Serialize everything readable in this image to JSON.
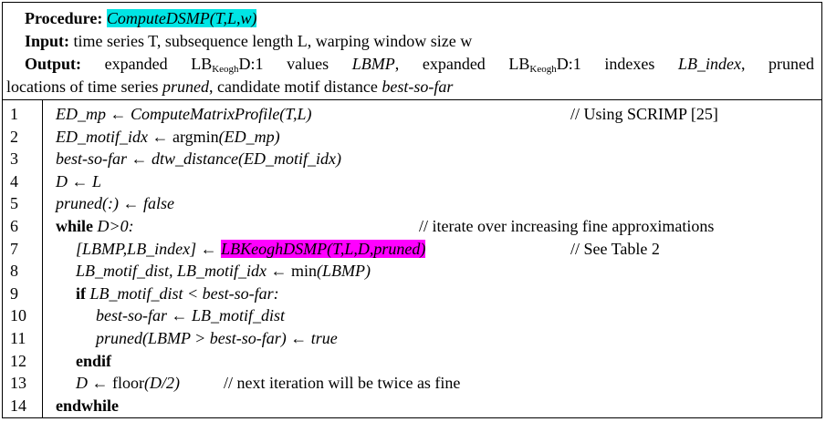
{
  "header": {
    "procedure_label": "Procedure:",
    "procedure_name": "ComputeDSMP(T,L,w)",
    "input_label": "Input:",
    "input_text": "time series T, subsequence length L, warping window size w",
    "output_label": "Output:",
    "output_line1_a": "expanded LB",
    "output_sub": "Keogh",
    "output_line1_b": "D:1 values ",
    "output_line1_c": "LBMP",
    "output_line1_d": ", expanded LB",
    "output_line1_e": "D:1 indexes ",
    "output_line1_f": "LB_index",
    "output_line1_g": ", pruned",
    "output_line2_a": "locations of time series ",
    "output_line2_b": "pruned",
    "output_line2_c": ", candidate motif distance ",
    "output_line2_d": "best-so-far"
  },
  "lines": [
    {
      "n": "1",
      "a": "ED_mp ← ComputeMatrixProfile(T,L)",
      "comment": "// Using SCRIMP [25]"
    },
    {
      "n": "2",
      "a": "ED_motif_idx ← ",
      "b": "argmin",
      "c": "(ED_mp)"
    },
    {
      "n": "3",
      "a": "best-so-far ← dtw_distance(ED_motif_idx)"
    },
    {
      "n": "4",
      "a": "D ← L"
    },
    {
      "n": "5",
      "a": "pruned(:) ← false"
    },
    {
      "n": "6",
      "kw": "while",
      "a": " D>0:",
      "comment": "// iterate over increasing fine approximations"
    },
    {
      "n": "7",
      "a": "[LBMP,LB_index] ← ",
      "hl": "LBKeoghDSMP(T,L,D,pruned)",
      "comment": "// See Table 2"
    },
    {
      "n": "8",
      "a": "LB_motif_dist, LB_motif_idx ← ",
      "b": "min",
      "c": "(LBMP)"
    },
    {
      "n": "9",
      "kw": "if",
      "a": " LB_motif_dist < best-so-far:"
    },
    {
      "n": "10",
      "a": "best-so-far ← LB_motif_dist"
    },
    {
      "n": "11",
      "a": "pruned(LBMP > best-so-far) ← true"
    },
    {
      "n": "12",
      "kw": "endif"
    },
    {
      "n": "13",
      "a": "D ← ",
      "b": "floor",
      "c": "(D/2)",
      "comment": "// next iteration will be twice as fine"
    },
    {
      "n": "14",
      "kw": "endwhile"
    }
  ],
  "colors": {
    "highlight_cyan": "#00e5e5",
    "highlight_magenta": "#ff00ff"
  }
}
